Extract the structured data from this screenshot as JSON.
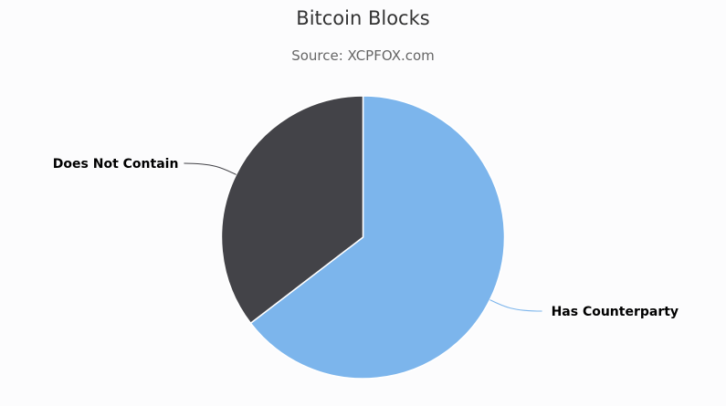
{
  "chart_data": {
    "type": "pie",
    "title": "Bitcoin Blocks",
    "subtitle": "Source: XCPFOX.com",
    "slices": [
      {
        "label": "Has Counterparty",
        "value": 64.6,
        "color": "#7cb5ec"
      },
      {
        "label": "Does Not Contain",
        "value": 35.4,
        "color": "#434348"
      }
    ],
    "legend": "none",
    "data_labels": "outside"
  }
}
